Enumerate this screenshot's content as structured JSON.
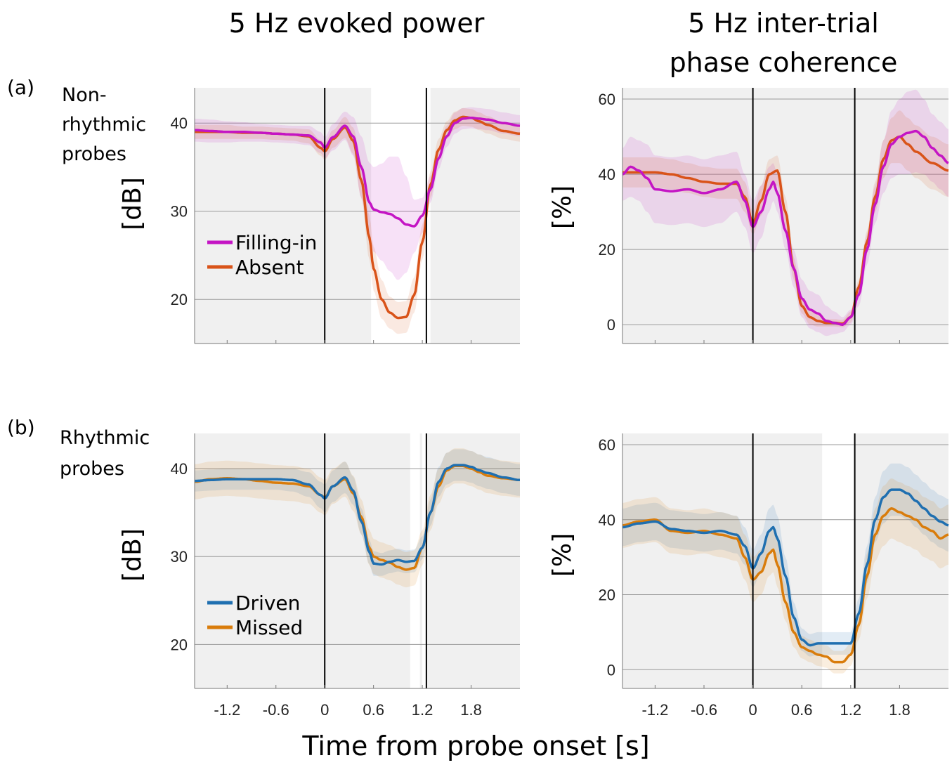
{
  "titles": {
    "left": "5 Hz evoked power",
    "right_line1": "5 Hz inter-trial",
    "right_line2": "phase coherence"
  },
  "row_labels": {
    "a_tag": "(a)",
    "a_line1": "Non-",
    "a_line2": "rhythmic",
    "a_line3": "probes",
    "b_tag": "(b)",
    "b_line1": "Rhythmic",
    "b_line2": "probes"
  },
  "xlabel": "Time from probe onset [s]",
  "colors": {
    "filling_in": "#c415c4",
    "absent": "#d95319",
    "driven": "#1f6fb0",
    "missed": "#d97c0b",
    "shade": "#f0f0f0"
  },
  "chart_data": [
    {
      "id": "a_power",
      "type": "line",
      "ylabel": "[dB]",
      "xlim": [
        -1.6,
        2.4
      ],
      "ylim": [
        15,
        44
      ],
      "yticks": [
        20,
        30,
        40
      ],
      "xticks": [
        -1.2,
        -0.6,
        0,
        0.6,
        1.2,
        1.8
      ],
      "xtick_labels_visible": false,
      "vlines": [
        0,
        1.25
      ],
      "significance_shade": [
        [
          -1.6,
          0.57
        ],
        [
          1.3,
          2.4
        ]
      ],
      "legend": [
        "Filling-in",
        "Absent"
      ],
      "series": [
        {
          "name": "Filling-in",
          "color_key": "filling_in",
          "x": [
            -1.6,
            -1.4,
            -1.2,
            -1.0,
            -0.8,
            -0.6,
            -0.4,
            -0.2,
            -0.05,
            0.0,
            0.1,
            0.25,
            0.35,
            0.45,
            0.55,
            0.6,
            0.7,
            0.8,
            0.9,
            1.0,
            1.1,
            1.2,
            1.3,
            1.4,
            1.5,
            1.6,
            1.7,
            1.8,
            1.9,
            2.0,
            2.2,
            2.4
          ],
          "y": [
            39.2,
            39.1,
            39.0,
            39.0,
            38.9,
            38.8,
            38.7,
            38.6,
            37.8,
            37.2,
            38.4,
            39.7,
            38.5,
            35.0,
            31.0,
            30.2,
            29.9,
            29.7,
            29.2,
            28.5,
            28.3,
            29.5,
            32.5,
            36.0,
            38.5,
            40.0,
            40.5,
            40.6,
            40.5,
            40.4,
            40.0,
            39.7
          ],
          "band_half_width": [
            1.3,
            1.3,
            1.2,
            1.1,
            1.0,
            1.0,
            1.0,
            1.1,
            1.2,
            1.2,
            1.5,
            1.6,
            2.2,
            3.5,
            4.5,
            4.8,
            5.5,
            6.5,
            7.0,
            5.5,
            3.0,
            2.0,
            1.5,
            1.2,
            1.2,
            1.2,
            1.2,
            1.2,
            1.2,
            1.2,
            1.2,
            1.2
          ]
        },
        {
          "name": "Absent",
          "color_key": "absent",
          "x": [
            -1.6,
            -1.4,
            -1.2,
            -1.0,
            -0.8,
            -0.6,
            -0.4,
            -0.2,
            -0.05,
            0.0,
            0.1,
            0.25,
            0.35,
            0.45,
            0.55,
            0.6,
            0.7,
            0.8,
            0.9,
            1.0,
            1.1,
            1.2,
            1.3,
            1.4,
            1.5,
            1.6,
            1.7,
            1.8,
            1.9,
            2.0,
            2.2,
            2.4
          ],
          "y": [
            39.0,
            39.0,
            39.0,
            38.9,
            38.9,
            38.8,
            38.7,
            38.5,
            37.2,
            36.8,
            38.2,
            39.5,
            38.0,
            33.5,
            27.0,
            23.5,
            20.0,
            18.5,
            17.9,
            18.0,
            20.5,
            26.5,
            33.0,
            37.0,
            39.2,
            40.3,
            40.7,
            40.6,
            40.2,
            39.8,
            39.1,
            38.8
          ],
          "band_half_width": [
            0.8,
            0.8,
            0.8,
            0.7,
            0.7,
            0.7,
            0.7,
            0.8,
            0.9,
            1.0,
            1.0,
            1.2,
            1.5,
            2.0,
            2.5,
            2.5,
            2.2,
            1.8,
            1.8,
            1.8,
            2.0,
            2.0,
            1.5,
            1.2,
            1.0,
            1.0,
            1.0,
            1.0,
            1.0,
            1.0,
            0.9,
            0.9
          ]
        }
      ]
    },
    {
      "id": "a_itc",
      "type": "line",
      "ylabel": "[%]",
      "xlim": [
        -1.6,
        2.4
      ],
      "ylim": [
        -5,
        63
      ],
      "yticks": [
        0,
        20,
        40,
        60
      ],
      "xticks": [
        -1.2,
        -0.6,
        0,
        0.6,
        1.2,
        1.8
      ],
      "xtick_labels_visible": false,
      "vlines": [
        0,
        1.25
      ],
      "significance_shade": [
        [
          -1.6,
          2.4
        ]
      ],
      "legend": [],
      "series": [
        {
          "name": "Filling-in",
          "color_key": "filling_in",
          "x": [
            -1.6,
            -1.5,
            -1.4,
            -1.3,
            -1.2,
            -1.0,
            -0.8,
            -0.6,
            -0.4,
            -0.2,
            -0.1,
            0.0,
            0.1,
            0.2,
            0.25,
            0.3,
            0.4,
            0.5,
            0.6,
            0.7,
            0.8,
            0.9,
            1.0,
            1.1,
            1.2,
            1.3,
            1.4,
            1.5,
            1.6,
            1.7,
            1.8,
            1.9,
            2.0,
            2.1,
            2.2,
            2.3,
            2.4
          ],
          "y": [
            40,
            42,
            41,
            39,
            36,
            35.5,
            36,
            35,
            36,
            38,
            33,
            26,
            30,
            36,
            38,
            35,
            25,
            15,
            7,
            4,
            3,
            1,
            0.5,
            0,
            2,
            8,
            20,
            32,
            42,
            48,
            50,
            51,
            51.5,
            50,
            47,
            45,
            43
          ],
          "band_half_width": [
            7,
            8,
            8,
            9,
            9,
            9,
            9,
            9,
            9,
            8,
            7,
            7,
            7,
            6,
            5,
            5,
            5,
            5,
            5,
            5,
            5,
            4,
            3,
            2,
            2,
            3,
            4,
            5,
            7,
            9,
            10,
            11,
            11,
            10,
            9,
            9,
            9
          ]
        },
        {
          "name": "Absent",
          "color_key": "absent",
          "x": [
            -1.6,
            -1.4,
            -1.2,
            -1.0,
            -0.8,
            -0.6,
            -0.4,
            -0.2,
            -0.1,
            0.0,
            0.1,
            0.2,
            0.3,
            0.4,
            0.5,
            0.6,
            0.7,
            0.8,
            0.9,
            1.0,
            1.1,
            1.2,
            1.3,
            1.4,
            1.5,
            1.6,
            1.7,
            1.8,
            1.9,
            2.0,
            2.2,
            2.4
          ],
          "y": [
            40.5,
            40.5,
            40.5,
            40,
            39,
            38,
            37.5,
            37.5,
            34,
            27,
            33,
            40,
            41,
            30,
            15,
            5,
            2,
            1,
            0.5,
            0.5,
            0.3,
            2,
            10,
            22,
            34,
            44,
            49,
            50,
            48,
            46,
            43,
            41
          ],
          "band_half_width": [
            4,
            4,
            4,
            4,
            4,
            4,
            4,
            4,
            4,
            3,
            4,
            4,
            4,
            4,
            3,
            2,
            2,
            1.5,
            1,
            1,
            1,
            1.5,
            2,
            3,
            4,
            5,
            6,
            7,
            7,
            7,
            7,
            7
          ]
        }
      ]
    },
    {
      "id": "b_power",
      "type": "line",
      "ylabel": "[dB]",
      "xlim": [
        -1.6,
        2.4
      ],
      "ylim": [
        15,
        44
      ],
      "yticks": [
        20,
        30,
        40
      ],
      "xticks": [
        -1.2,
        -0.6,
        0,
        0.6,
        1.2,
        1.8
      ],
      "xtick_labels": [
        "-1.2",
        "-0.6",
        "0",
        "0.6",
        "1.2",
        "1.8"
      ],
      "xtick_labels_visible": true,
      "vlines": [
        0,
        1.25
      ],
      "significance_shade": [
        [
          -1.6,
          1.05
        ],
        [
          1.17,
          1.2
        ],
        [
          1.25,
          2.4
        ]
      ],
      "legend": [
        "Driven",
        "Missed"
      ],
      "series": [
        {
          "name": "Driven",
          "color_key": "driven",
          "x": [
            -1.6,
            -1.4,
            -1.2,
            -1.0,
            -0.8,
            -0.6,
            -0.4,
            -0.2,
            -0.05,
            0.0,
            0.1,
            0.25,
            0.35,
            0.45,
            0.55,
            0.6,
            0.7,
            0.8,
            0.9,
            1.0,
            1.1,
            1.2,
            1.3,
            1.4,
            1.5,
            1.6,
            1.7,
            1.8,
            1.9,
            2.0,
            2.2,
            2.4
          ],
          "y": [
            38.6,
            38.7,
            38.8,
            38.8,
            38.8,
            38.8,
            38.7,
            38.2,
            37.0,
            36.6,
            38.0,
            39.0,
            37.5,
            34.0,
            30.5,
            29.2,
            29.1,
            29.4,
            29.6,
            29.4,
            29.5,
            31.0,
            35.0,
            38.5,
            40.0,
            40.4,
            40.4,
            40.2,
            39.8,
            39.5,
            39.0,
            38.7
          ],
          "band_half_width": [
            1.2,
            1.2,
            1.2,
            1.2,
            1.2,
            1.2,
            1.3,
            1.4,
            1.5,
            1.6,
            1.8,
            1.8,
            1.6,
            1.5,
            1.4,
            1.4,
            1.3,
            1.3,
            1.3,
            1.3,
            1.3,
            1.3,
            1.5,
            1.7,
            1.8,
            1.8,
            1.8,
            1.8,
            1.8,
            1.8,
            1.8,
            1.8
          ]
        },
        {
          "name": "Missed",
          "color_key": "missed",
          "x": [
            -1.6,
            -1.4,
            -1.2,
            -1.0,
            -0.8,
            -0.6,
            -0.4,
            -0.2,
            -0.05,
            0.0,
            0.1,
            0.25,
            0.35,
            0.45,
            0.55,
            0.6,
            0.7,
            0.8,
            0.9,
            1.0,
            1.1,
            1.2,
            1.3,
            1.4,
            1.5,
            1.6,
            1.7,
            1.8,
            1.9,
            2.0,
            2.2,
            2.4
          ],
          "y": [
            38.5,
            38.8,
            38.9,
            38.8,
            38.6,
            38.4,
            38.3,
            38.0,
            37.0,
            36.7,
            38.0,
            38.8,
            37.2,
            34.5,
            31.0,
            30.0,
            29.6,
            29.3,
            28.8,
            28.5,
            28.7,
            31.0,
            35.0,
            38.0,
            39.8,
            40.3,
            40.3,
            40.0,
            39.6,
            39.2,
            38.9,
            38.7
          ],
          "band_half_width": [
            2.0,
            2.0,
            2.0,
            2.0,
            2.0,
            2.0,
            2.0,
            2.0,
            2.0,
            2.0,
            2.0,
            2.0,
            2.0,
            2.0,
            2.0,
            2.0,
            2.0,
            2.0,
            2.0,
            2.0,
            2.0,
            2.0,
            2.0,
            2.0,
            2.0,
            2.0,
            2.0,
            2.0,
            2.0,
            2.0,
            2.0,
            2.0
          ]
        }
      ]
    },
    {
      "id": "b_itc",
      "type": "line",
      "ylabel": "[%]",
      "xlim": [
        -1.6,
        2.4
      ],
      "ylim": [
        -5,
        63
      ],
      "yticks": [
        0,
        20,
        40,
        60
      ],
      "xticks": [
        -1.2,
        -0.6,
        0,
        0.6,
        1.2,
        1.8
      ],
      "xtick_labels": [
        "-1.2",
        "-0.6",
        "0",
        "0.6",
        "1.2",
        "1.8"
      ],
      "xtick_labels_visible": true,
      "vlines": [
        0,
        1.25
      ],
      "significance_shade": [
        [
          -1.6,
          0.85
        ],
        [
          1.25,
          2.4
        ]
      ],
      "legend": [],
      "series": [
        {
          "name": "Driven",
          "color_key": "driven",
          "x": [
            -1.6,
            -1.4,
            -1.2,
            -1.0,
            -0.8,
            -0.6,
            -0.4,
            -0.2,
            -0.1,
            0.0,
            0.1,
            0.2,
            0.25,
            0.3,
            0.4,
            0.5,
            0.6,
            0.7,
            0.8,
            0.9,
            1.0,
            1.1,
            1.2,
            1.3,
            1.4,
            1.5,
            1.6,
            1.7,
            1.8,
            1.9,
            2.0,
            2.1,
            2.2,
            2.3,
            2.4
          ],
          "y": [
            38,
            39,
            39.5,
            37.5,
            37,
            36.5,
            37,
            36,
            33,
            27,
            31,
            37,
            38,
            35,
            25,
            14,
            8,
            6.5,
            7,
            7,
            7,
            7,
            7,
            15,
            28,
            40,
            46,
            48,
            48,
            47,
            45,
            43,
            41,
            39.5,
            38.5
          ],
          "band_half_width": [
            5,
            5,
            5,
            5,
            5,
            5,
            5,
            5,
            5,
            5,
            5,
            6,
            6,
            6,
            5,
            4,
            3,
            3,
            3,
            3,
            3,
            3,
            3,
            4,
            5,
            6,
            7,
            7,
            7,
            7,
            7,
            7,
            7,
            7,
            7
          ]
        },
        {
          "name": "Missed",
          "color_key": "missed",
          "x": [
            -1.6,
            -1.4,
            -1.2,
            -1.0,
            -0.8,
            -0.6,
            -0.4,
            -0.2,
            -0.1,
            0.0,
            0.1,
            0.2,
            0.25,
            0.3,
            0.4,
            0.5,
            0.6,
            0.7,
            0.8,
            0.9,
            1.0,
            1.1,
            1.2,
            1.3,
            1.4,
            1.5,
            1.6,
            1.7,
            1.8,
            1.9,
            2.0,
            2.1,
            2.2,
            2.3,
            2.4
          ],
          "y": [
            38.5,
            39.5,
            40,
            37,
            36.5,
            37,
            36,
            35,
            30,
            24,
            26,
            31,
            32,
            28,
            18,
            10,
            6,
            5,
            4,
            3.5,
            2,
            2,
            4,
            12,
            25,
            36,
            41,
            43,
            42,
            41,
            40,
            38,
            37,
            35,
            36
          ],
          "band_half_width": [
            6,
            6,
            6,
            6,
            6,
            6,
            6,
            6,
            6,
            6,
            6,
            6,
            6,
            6,
            5,
            4,
            3,
            3,
            3,
            3,
            3,
            3,
            3,
            4,
            6,
            7,
            8,
            8,
            8,
            8,
            8,
            8,
            8,
            8,
            8
          ]
        }
      ]
    }
  ]
}
